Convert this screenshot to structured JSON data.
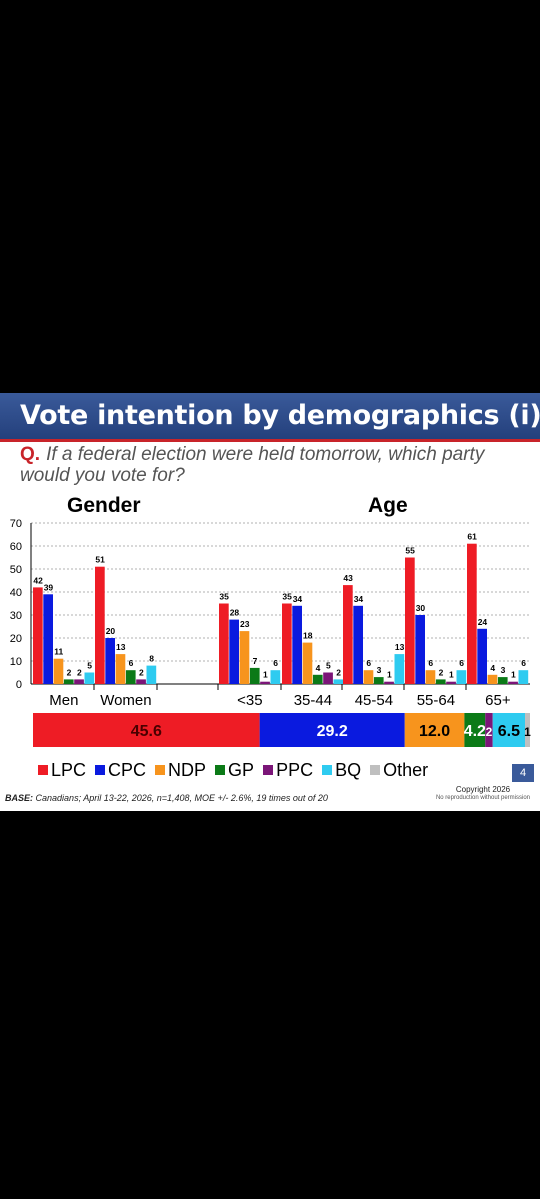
{
  "slide": {
    "title": "Vote intention by demographics (i)",
    "question_marker": "Q.",
    "question": "If a federal election were held tomorrow, which party would you vote for?",
    "page_number": "4",
    "copyright": "Copyright 2026",
    "copyright_sub": "No reproduction without permission",
    "base_label": "BASE:",
    "base_text": "Canadians; April 13-22, 2026, n=1,408, MOE +/- 2.6%, 19 times out of 20"
  },
  "chart_data": [
    {
      "type": "bar",
      "groups": [
        {
          "title": "Gender",
          "categories": [
            "Men",
            "Women"
          ]
        },
        {
          "title": "Age",
          "categories": [
            "<35",
            "35-44",
            "45-54",
            "55-64",
            "65+"
          ]
        }
      ],
      "categories": [
        "Men",
        "Women",
        "<35",
        "35-44",
        "45-54",
        "55-64",
        "65+"
      ],
      "series": [
        {
          "name": "LPC",
          "color": "#ee1c25",
          "values": [
            42,
            51,
            35,
            35,
            43,
            55,
            61
          ]
        },
        {
          "name": "CPC",
          "color": "#0a1adf",
          "values": [
            39,
            20,
            28,
            34,
            34,
            30,
            24
          ]
        },
        {
          "name": "NDP",
          "color": "#f7941d",
          "values": [
            11,
            13,
            23,
            18,
            6,
            6,
            4
          ]
        },
        {
          "name": "GP",
          "color": "#0b7a17",
          "values": [
            2,
            6,
            7,
            4,
            3,
            2,
            3
          ]
        },
        {
          "name": "PPC",
          "color": "#7b1578",
          "values": [
            2,
            2,
            1,
            5,
            1,
            1,
            1
          ]
        },
        {
          "name": "BQ",
          "color": "#2ecbf0",
          "values": [
            5,
            8,
            6,
            2,
            13,
            6,
            6
          ]
        }
      ],
      "ylim": [
        0,
        70
      ],
      "yticks": [
        0,
        10,
        20,
        30,
        40,
        50,
        60,
        70
      ],
      "grid": true
    },
    {
      "type": "bar",
      "orientation": "horizontal-stacked",
      "segments": [
        {
          "name": "LPC",
          "value": 45.6,
          "label": "45.6",
          "color": "#ee1c25"
        },
        {
          "name": "CPC",
          "value": 29.2,
          "label": "29.2",
          "color": "#0a1adf"
        },
        {
          "name": "NDP",
          "value": 12.0,
          "label": "12.0",
          "color": "#f7941d"
        },
        {
          "name": "GP",
          "value": 4.2,
          "label": "4.2",
          "color": "#0b7a17"
        },
        {
          "name": "PPC",
          "value": 1.5,
          "label": "2",
          "color": "#7b1578"
        },
        {
          "name": "BQ",
          "value": 6.5,
          "label": "6.5",
          "color": "#2ecbf0"
        },
        {
          "name": "Other",
          "value": 1.0,
          "label": "1",
          "color": "#bfbfbf"
        }
      ]
    }
  ],
  "legend": [
    {
      "name": "LPC",
      "color": "#ee1c25"
    },
    {
      "name": "CPC",
      "color": "#0a1adf"
    },
    {
      "name": "NDP",
      "color": "#f7941d"
    },
    {
      "name": "GP",
      "color": "#0b7a17"
    },
    {
      "name": "PPC",
      "color": "#7b1578"
    },
    {
      "name": "BQ",
      "color": "#2ecbf0"
    },
    {
      "name": "Other",
      "color": "#bfbfbf"
    }
  ]
}
